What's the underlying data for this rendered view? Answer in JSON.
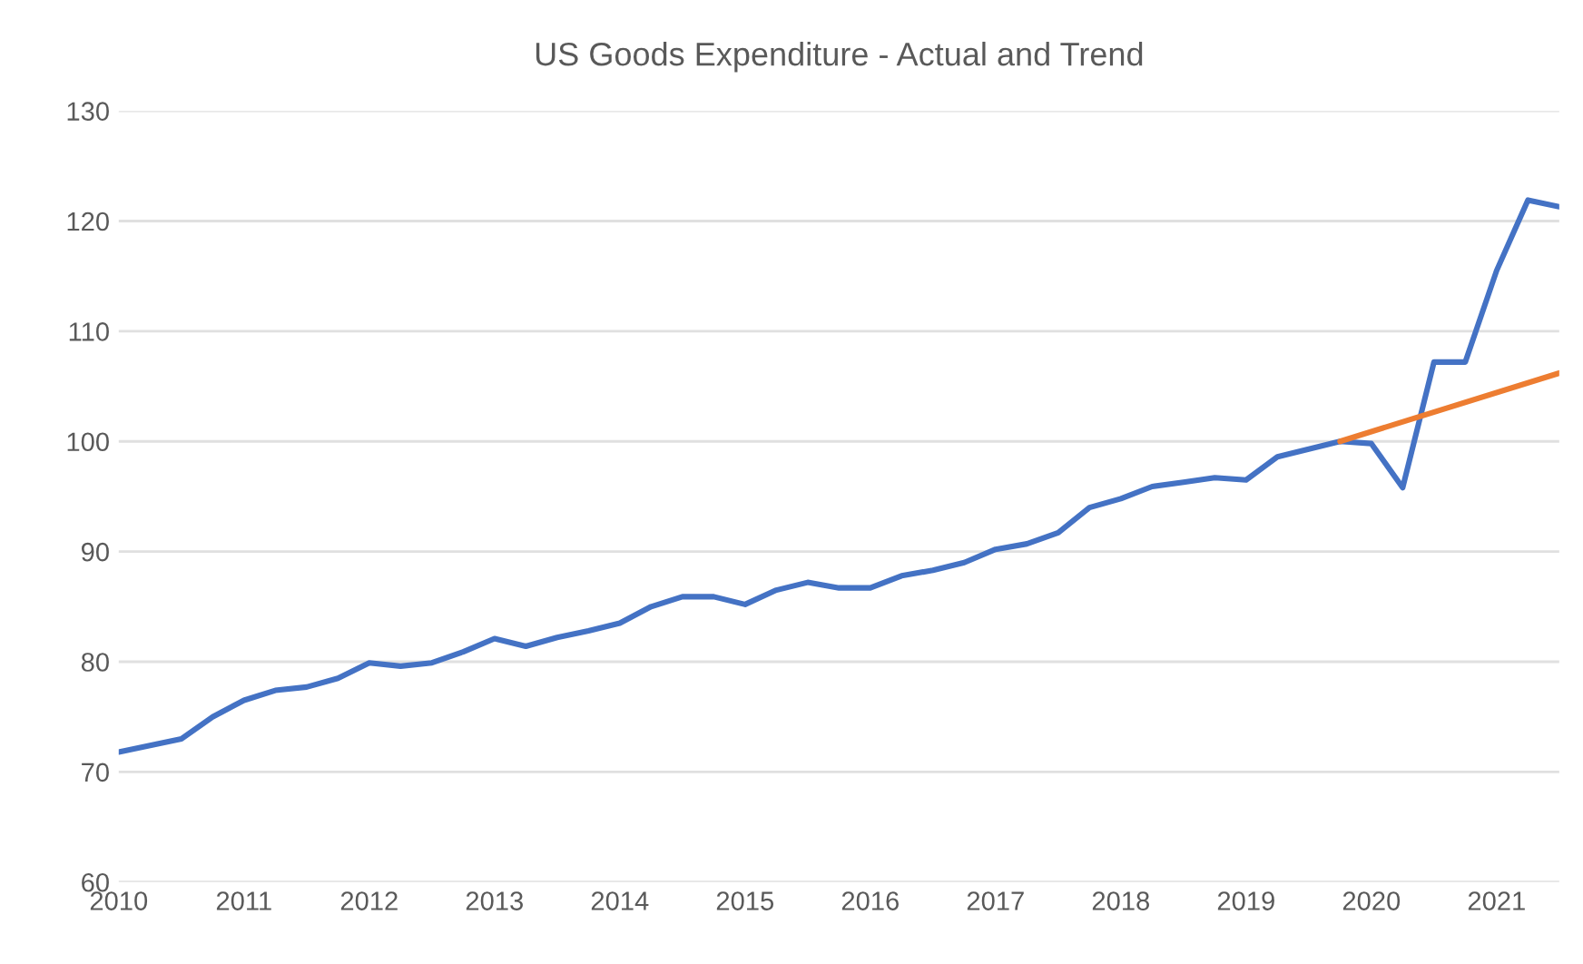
{
  "chart_data": {
    "type": "line",
    "title": "US Goods Expenditure - Actual and Trend",
    "x": [
      2010.0,
      2010.25,
      2010.5,
      2010.75,
      2011.0,
      2011.25,
      2011.5,
      2011.75,
      2012.0,
      2012.25,
      2012.5,
      2012.75,
      2013.0,
      2013.25,
      2013.5,
      2013.75,
      2014.0,
      2014.25,
      2014.5,
      2014.75,
      2015.0,
      2015.25,
      2015.5,
      2015.75,
      2016.0,
      2016.25,
      2016.5,
      2016.75,
      2017.0,
      2017.25,
      2017.5,
      2017.75,
      2018.0,
      2018.25,
      2018.5,
      2018.75,
      2019.0,
      2019.25,
      2019.5,
      2019.75,
      2020.0,
      2020.25,
      2020.5,
      2020.75,
      2021.0,
      2021.25,
      2021.5
    ],
    "series": [
      {
        "color": "#4472c4",
        "values": [
          71.8,
          72.4,
          73.0,
          75.0,
          76.5,
          77.4,
          77.7,
          78.5,
          79.9,
          79.6,
          79.9,
          80.9,
          82.1,
          81.4,
          82.2,
          82.8,
          83.5,
          85.0,
          85.9,
          85.9,
          85.2,
          86.5,
          87.2,
          86.7,
          86.7,
          87.8,
          88.3,
          89.0,
          90.2,
          90.7,
          91.7,
          94.0,
          94.8,
          95.9,
          96.3,
          96.7,
          96.5,
          98.6,
          99.3,
          100.0,
          99.8,
          95.8,
          107.2,
          107.2,
          115.5,
          121.9,
          121.3
        ]
      },
      {
        "color": "#ed7d31",
        "x": [
          2019.75,
          2021.5
        ],
        "values": [
          100.0,
          106.2
        ]
      }
    ],
    "xlim": [
      2010,
      2021.5
    ],
    "xticks": [
      2010,
      2011,
      2012,
      2013,
      2014,
      2015,
      2016,
      2017,
      2018,
      2019,
      2020,
      2021
    ],
    "ylim": [
      60,
      130
    ],
    "yticks": [
      60,
      70,
      80,
      90,
      100,
      110,
      120,
      130
    ],
    "grid": "y",
    "line_style": "solid",
    "marker": "none"
  }
}
